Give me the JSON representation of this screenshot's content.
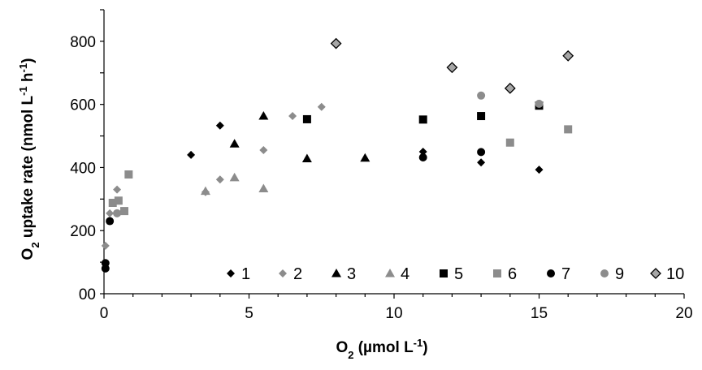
{
  "chart_data": {
    "type": "scatter",
    "title": "",
    "xlabel": {
      "prefix": "O",
      "sub": "2",
      "mid": " (µmol L",
      "sup": "-1",
      "suffix": ")"
    },
    "ylabel": {
      "prefix": "O",
      "sub": "2",
      "mid": " uptake rate (nmol L",
      "sup1": "-1",
      "mid2": " h",
      "sup2": "-1",
      "suffix": ")"
    },
    "xlim": [
      0,
      20
    ],
    "ylim": [
      0,
      900
    ],
    "xticks": [
      "0",
      "5",
      "10",
      "15",
      "20"
    ],
    "yticks": [
      "00",
      "200",
      "400",
      "600",
      "800"
    ],
    "grid": false,
    "legend_position": "bottom-right inside plot",
    "series": [
      {
        "name": "1",
        "marker": "diamond",
        "color": "#000000",
        "points": [
          [
            3.0,
            440
          ],
          [
            4.0,
            533
          ],
          [
            11.0,
            450
          ],
          [
            13.0,
            416
          ],
          [
            15.0,
            393
          ]
        ]
      },
      {
        "name": "2",
        "marker": "diamond",
        "color": "#8c8c8c",
        "points": [
          [
            0.05,
            152
          ],
          [
            0.2,
            255
          ],
          [
            0.45,
            330
          ],
          [
            3.5,
            322
          ],
          [
            4.0,
            362
          ],
          [
            5.5,
            455
          ],
          [
            6.5,
            563
          ],
          [
            7.5,
            592
          ]
        ]
      },
      {
        "name": "3",
        "marker": "triangle",
        "color": "#000000",
        "points": [
          [
            4.5,
            475
          ],
          [
            5.5,
            563
          ],
          [
            7.0,
            428
          ],
          [
            9.0,
            430
          ]
        ]
      },
      {
        "name": "4",
        "marker": "triangle",
        "color": "#8c8c8c",
        "points": [
          [
            3.5,
            325
          ],
          [
            4.5,
            368
          ],
          [
            5.5,
            333
          ]
        ]
      },
      {
        "name": "5",
        "marker": "square",
        "color": "#000000",
        "points": [
          [
            7.0,
            553
          ],
          [
            11.0,
            552
          ],
          [
            13.0,
            563
          ],
          [
            15.0,
            596
          ]
        ]
      },
      {
        "name": "6",
        "marker": "square",
        "color": "#8c8c8c",
        "points": [
          [
            0.3,
            288
          ],
          [
            0.5,
            295
          ],
          [
            0.7,
            262
          ],
          [
            0.85,
            378
          ],
          [
            14.0,
            479
          ],
          [
            16.0,
            521
          ]
        ]
      },
      {
        "name": "7",
        "marker": "circle",
        "color": "#000000",
        "points": [
          [
            0.05,
            97
          ],
          [
            0.05,
            80
          ],
          [
            0.2,
            230
          ],
          [
            11.0,
            432
          ],
          [
            13.0,
            449
          ]
        ]
      },
      {
        "name": "9",
        "marker": "circle",
        "color": "#8c8c8c",
        "points": [
          [
            0.45,
            255
          ],
          [
            13.0,
            628
          ],
          [
            15.0,
            602
          ]
        ]
      },
      {
        "name": "10",
        "marker": "diamond-outline",
        "color": "#a6a6a6",
        "stroke": "#000000",
        "points": [
          [
            8.0,
            793
          ],
          [
            12.0,
            717
          ],
          [
            14.0,
            651
          ],
          [
            16.0,
            754
          ]
        ]
      }
    ]
  }
}
